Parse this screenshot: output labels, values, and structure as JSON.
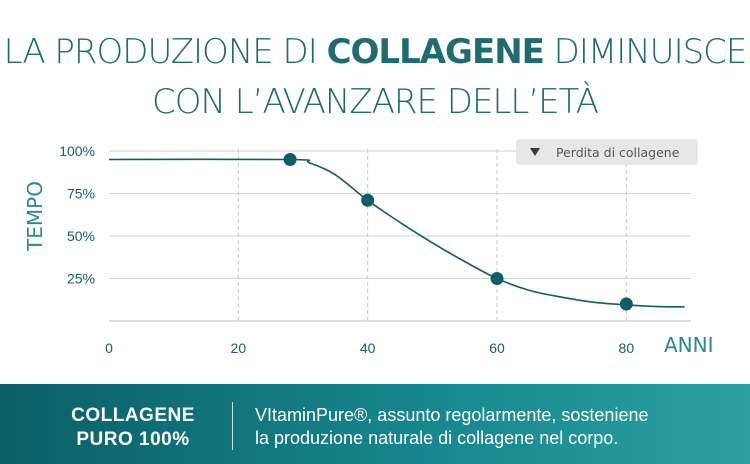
{
  "title": {
    "line1_pre": "LA PRODUZIONE DI ",
    "line1_bold": "COLLAGENE",
    "line1_post": " DIMINUISCE",
    "line2": "CON L’AVANZARE DELL’ETÀ"
  },
  "chart_data": {
    "type": "line",
    "ylabel": "TEMPO",
    "xlabel": "ANNI",
    "x_ticks": [
      "0",
      "20",
      "40",
      "60",
      "80"
    ],
    "y_ticks": [
      "25%",
      "50%",
      "75%",
      "100%"
    ],
    "xlim": [
      0,
      90
    ],
    "ylim": [
      0,
      100
    ],
    "series": [
      {
        "name": "Perdita di collagene",
        "curve": [
          [
            0,
            95
          ],
          [
            28,
            95
          ],
          [
            31,
            93
          ],
          [
            35,
            86
          ],
          [
            40,
            71
          ],
          [
            45,
            58
          ],
          [
            50,
            46
          ],
          [
            55,
            35
          ],
          [
            60,
            25
          ],
          [
            65,
            18
          ],
          [
            70,
            14
          ],
          [
            75,
            11
          ],
          [
            80,
            9.5
          ],
          [
            85,
            8.5
          ],
          [
            89,
            8.3
          ]
        ],
        "markers": [
          [
            28,
            95
          ],
          [
            40,
            71
          ],
          [
            60,
            25
          ],
          [
            80,
            10
          ]
        ]
      }
    ],
    "grid": true,
    "legend_position": "top-right",
    "line_color": "#0f5e63",
    "marker_color": "#0f5e63"
  },
  "legend": {
    "label": "Perdita di collagene"
  },
  "footer": {
    "left_line1": "COLLAGENE",
    "left_line2": "PURO 100%",
    "right_line1": "VItaminPure®, assunto regolarmente, sosteniene",
    "right_line2": "la produzione naturale di collagene nel corpo."
  },
  "colors": {
    "title": "#1f6b6f",
    "band_start": "#0b5e66",
    "band_end": "#2aa0a2",
    "grid": "#cfcfcf"
  }
}
